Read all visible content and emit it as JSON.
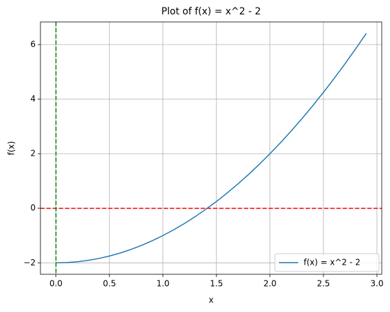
{
  "chart_data": {
    "type": "line",
    "title": "Plot of f(x) = x^2 - 2",
    "xlabel": "x",
    "ylabel": "f(x)",
    "x": [
      0,
      0.1,
      0.2,
      0.3,
      0.4,
      0.5,
      0.6,
      0.7,
      0.8,
      0.9,
      1,
      1.1,
      1.2,
      1.3,
      1.4,
      1.5,
      1.6,
      1.7,
      1.8,
      1.9,
      2,
      2.1,
      2.2,
      2.3,
      2.4,
      2.5,
      2.6,
      2.7,
      2.8,
      2.9
    ],
    "series": [
      {
        "name": "f(x) = x^2 - 2",
        "color": "#1f77b4",
        "values": [
          -2,
          -1.99,
          -1.96,
          -1.91,
          -1.84,
          -1.75,
          -1.64,
          -1.51,
          -1.36,
          -1.19,
          -1,
          -0.79,
          -0.56,
          -0.31,
          -0.04,
          0.25,
          0.56,
          0.89,
          1.24,
          1.61,
          2,
          2.41,
          2.84,
          3.29,
          3.76,
          4.25,
          4.76,
          5.29,
          5.84,
          6.41
        ]
      }
    ],
    "hlines": [
      {
        "value": 0,
        "color": "#ff0000"
      }
    ],
    "vlines": [
      {
        "value": 0,
        "color": "#008000"
      }
    ],
    "xlim": [
      -0.145,
      3.045
    ],
    "ylim": [
      -2.42,
      6.83
    ],
    "xticks": [
      {
        "value": 0,
        "label": "0.0"
      },
      0.5,
      {
        "value": 1,
        "label": "1.0"
      },
      1.5,
      {
        "value": 2,
        "label": "2.0"
      },
      2.5,
      {
        "value": 3,
        "label": "3.0"
      }
    ],
    "yticks": [
      {
        "value": -2,
        "label": "−2"
      },
      0,
      2,
      4,
      6
    ],
    "grid": true,
    "legend": "lower right"
  }
}
